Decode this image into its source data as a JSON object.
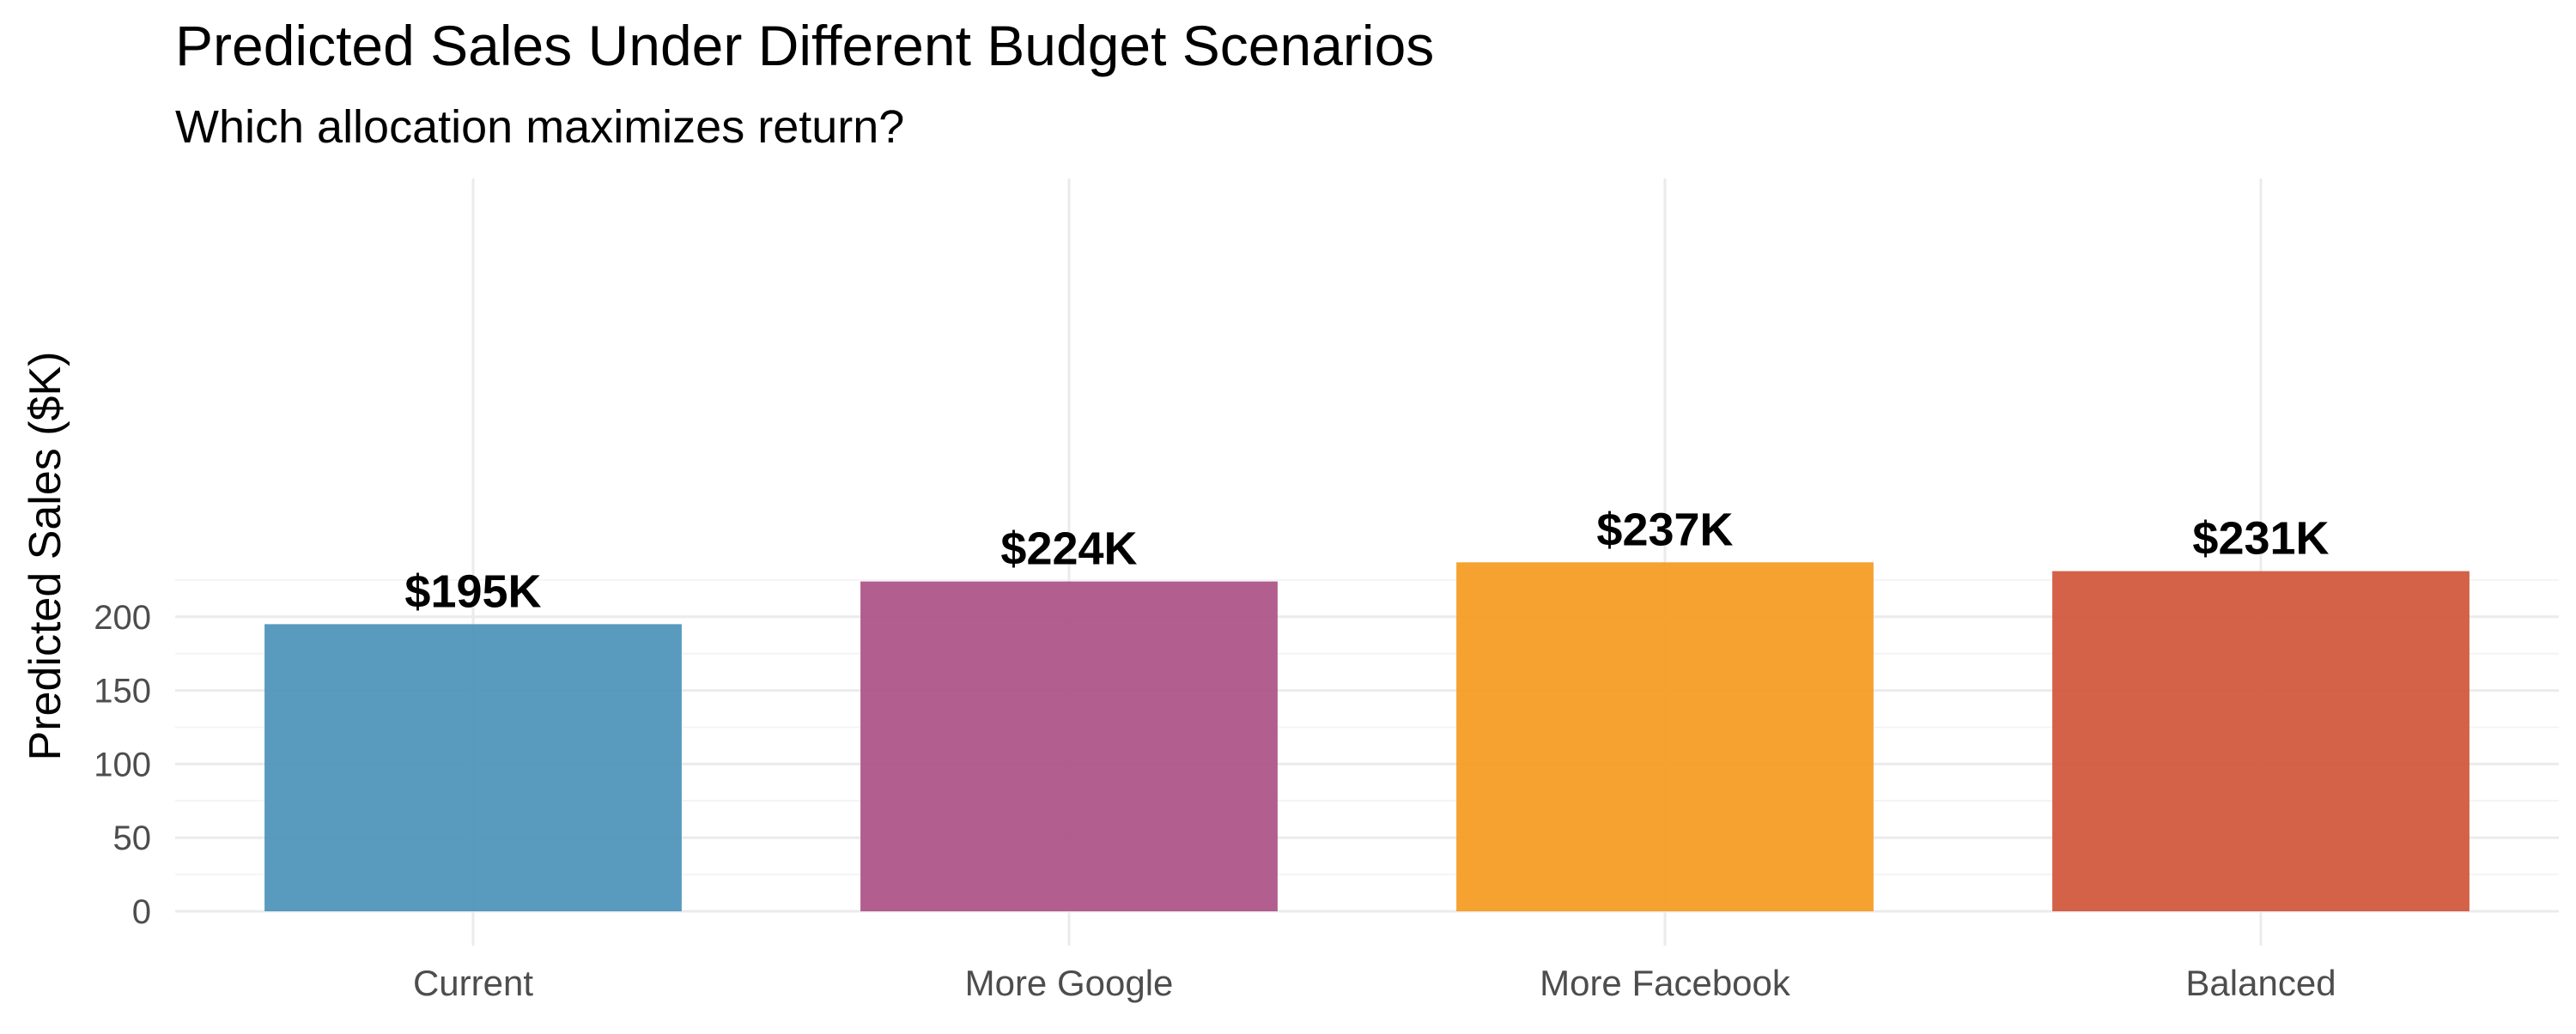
{
  "chart_data": {
    "type": "bar",
    "title": "Predicted Sales Under Different Budget Scenarios",
    "subtitle": "Which allocation maximizes return?",
    "xlabel": "",
    "ylabel": "Predicted Sales ($K)",
    "categories": [
      "Current",
      "More Google",
      "More Facebook",
      "Balanced"
    ],
    "values": [
      195,
      224,
      237,
      231
    ],
    "data_labels": [
      "$195K",
      "$224K",
      "$237K",
      "$231K"
    ],
    "colors": [
      "#4a93b8",
      "#ab5084",
      "#f59a1f",
      "#cf553a"
    ],
    "ylim": [
      0,
      240
    ],
    "yticks": [
      0,
      50,
      100,
      150,
      200
    ],
    "ytick_labels": [
      "0",
      "50",
      "100",
      "150",
      "200"
    ],
    "grid": true,
    "legend": "none"
  }
}
